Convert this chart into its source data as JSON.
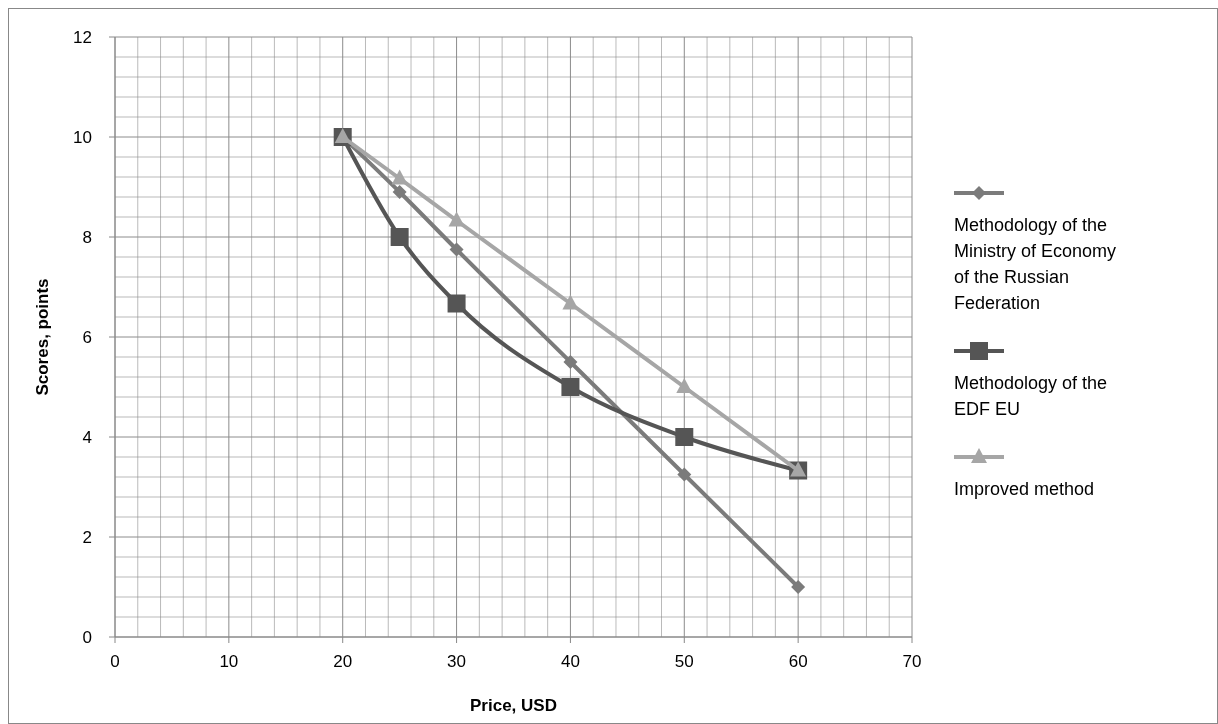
{
  "chart_data": {
    "type": "line",
    "xlabel": "Price, USD",
    "ylabel": "Scores, points",
    "xlim": [
      0,
      70
    ],
    "ylim": [
      0,
      12
    ],
    "xticks": [
      0,
      {
        "value": 2,
        "label": null
      },
      {
        "value": 4,
        "label": null
      },
      {
        "value": 6,
        "label": null
      },
      {
        "value": 8,
        "label": null
      },
      10,
      {
        "value": 12,
        "label": null
      },
      {
        "value": 14,
        "label": null
      },
      {
        "value": 16,
        "label": null
      },
      {
        "value": 18,
        "label": null
      },
      20,
      {
        "value": 22,
        "label": null
      },
      {
        "value": 24,
        "label": null
      },
      {
        "value": 26,
        "label": null
      },
      {
        "value": 28,
        "label": null
      },
      30,
      {
        "value": 32,
        "label": null
      },
      {
        "value": 34,
        "label": null
      },
      {
        "value": 36,
        "label": null
      },
      {
        "value": 38,
        "label": null
      },
      40,
      {
        "value": 42,
        "label": null
      },
      {
        "value": 44,
        "label": null
      },
      {
        "value": 46,
        "label": null
      },
      {
        "value": 48,
        "label": null
      },
      50,
      {
        "value": 52,
        "label": null
      },
      {
        "value": 54,
        "label": null
      },
      {
        "value": 56,
        "label": null
      },
      {
        "value": 58,
        "label": null
      },
      60,
      {
        "value": 62,
        "label": null
      },
      {
        "value": 64,
        "label": null
      },
      {
        "value": 66,
        "label": null
      },
      {
        "value": 68,
        "label": null
      },
      70
    ],
    "yticks": [
      0,
      {
        "value": 0.4,
        "label": null
      },
      {
        "value": 0.8,
        "label": null
      },
      {
        "value": 1.2,
        "label": null
      },
      {
        "value": 1.6,
        "label": null
      },
      2,
      {
        "value": 2.4,
        "label": null
      },
      {
        "value": 2.8,
        "label": null
      },
      {
        "value": 3.2,
        "label": null
      },
      {
        "value": 3.6,
        "label": null
      },
      4,
      {
        "value": 4.4,
        "label": null
      },
      {
        "value": 4.8,
        "label": null
      },
      {
        "value": 5.2,
        "label": null
      },
      {
        "value": 5.6,
        "label": null
      },
      6,
      {
        "value": 6.4,
        "label": null
      },
      {
        "value": 6.8,
        "label": null
      },
      {
        "value": 7.2,
        "label": null
      },
      {
        "value": 7.6,
        "label": null
      },
      8,
      {
        "value": 8.4,
        "label": null
      },
      {
        "value": 8.8,
        "label": null
      },
      {
        "value": 9.2,
        "label": null
      },
      {
        "value": 9.6,
        "label": null
      },
      10,
      {
        "value": 10.4,
        "label": null
      },
      {
        "value": 10.8,
        "label": null
      },
      {
        "value": 11.2,
        "label": null
      },
      {
        "value": 11.6,
        "label": null
      },
      12
    ],
    "grid": true,
    "legend": "right",
    "line_style": "solid",
    "x": [
      20,
      25,
      30,
      40,
      50,
      60
    ],
    "series": [
      {
        "name": "Methodology of the Ministry of Economy of the Russian Federation",
        "color": "#7b7b7b",
        "marker": "diamond",
        "values": [
          10,
          8.9,
          7.75,
          5.5,
          3.25,
          1
        ]
      },
      {
        "name": "Methodology of the EDF EU",
        "color": "#555555",
        "marker": "square",
        "values": [
          10,
          8,
          6.67,
          5,
          4,
          3.33
        ]
      },
      {
        "name": "Improved method",
        "color": "#a6a6a6",
        "marker": "triangle",
        "values": [
          10,
          9.17,
          8.33,
          6.67,
          5,
          3.33
        ]
      }
    ]
  }
}
